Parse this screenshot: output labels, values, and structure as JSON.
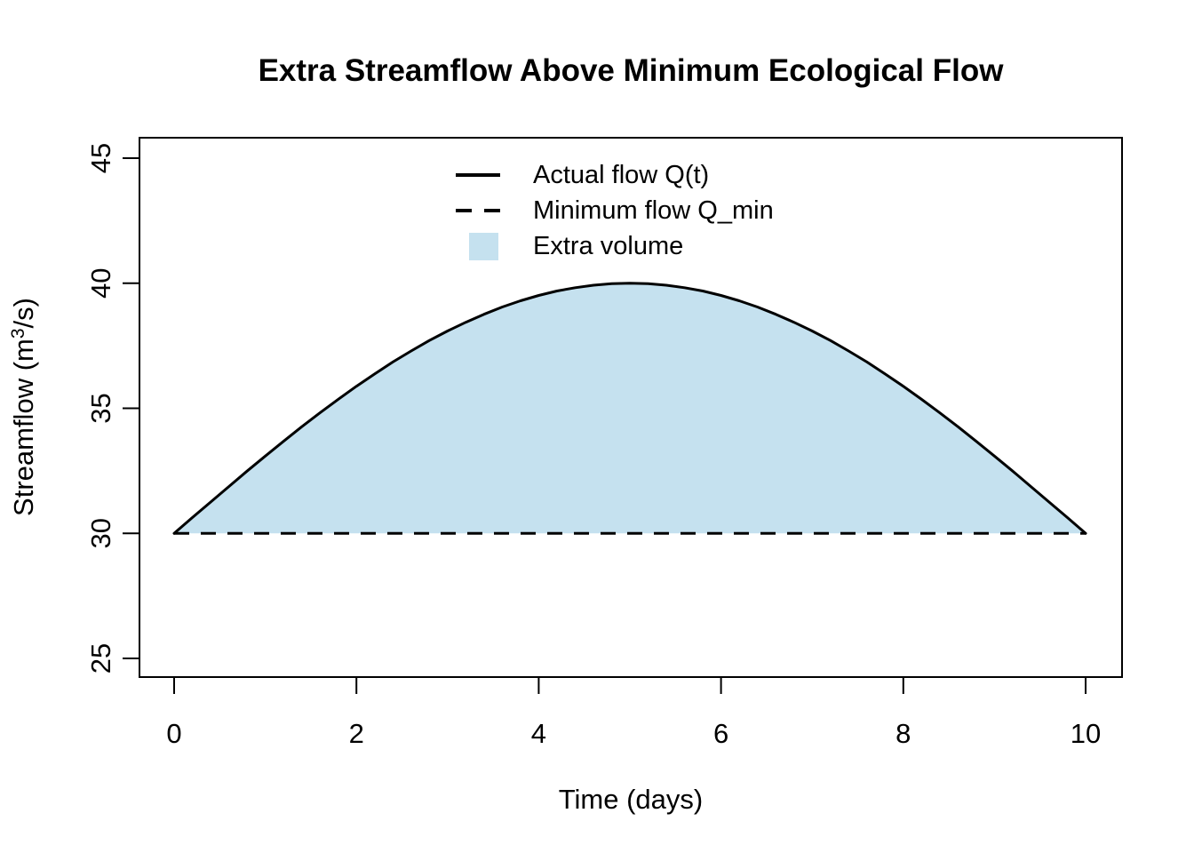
{
  "chart": {
    "title": "Extra Streamflow Above Minimum Ecological Flow",
    "x_axis": {
      "label": "Time (days)",
      "ticks": [
        0,
        2,
        4,
        6,
        8,
        10
      ]
    },
    "y_axis": {
      "label_prefix": "Streamflow (m",
      "label_sup": "3",
      "label_suffix": "/s)",
      "ticks": [
        25,
        30,
        35,
        40,
        45
      ]
    },
    "legend": [
      {
        "label": "Actual flow Q(t)",
        "swatch": "solid-line",
        "color": "#000000"
      },
      {
        "label": "Minimum flow Q_min",
        "swatch": "dashed-line",
        "color": "#000000"
      },
      {
        "label": "Extra volume",
        "swatch": "box",
        "color": "#C5E1EF"
      }
    ]
  },
  "chart_data": {
    "type": "area",
    "title": "Extra Streamflow Above Minimum Ecological Flow",
    "xlabel": "Time (days)",
    "ylabel": "Streamflow (m^3/s)",
    "xlim": [
      0,
      10
    ],
    "ylim": [
      25,
      45
    ],
    "x_ticks": [
      0,
      2,
      4,
      6,
      8,
      10
    ],
    "y_ticks": [
      25,
      30,
      35,
      40,
      45
    ],
    "grid": false,
    "legend_position": "top-center",
    "frame_color": "#000000",
    "series": [
      {
        "name": "Actual flow Q(t)",
        "kind": "line",
        "style": "solid",
        "color": "#000000",
        "x": [
          0,
          0.2,
          0.4,
          0.6,
          0.8,
          1,
          1.2,
          1.4,
          1.6,
          1.8,
          2,
          2.2,
          2.4,
          2.6,
          2.8,
          3,
          3.2,
          3.4,
          3.6,
          3.8,
          4,
          4.2,
          4.4,
          4.6,
          4.8,
          5,
          5.2,
          5.4,
          5.6,
          5.8,
          6,
          6.2,
          6.4,
          6.6,
          6.8,
          7,
          7.2,
          7.4,
          7.6,
          7.8,
          8,
          8.2,
          8.4,
          8.6,
          8.8,
          9,
          9.2,
          9.4,
          9.6,
          9.8,
          10
        ],
        "y": [
          30,
          30.63,
          31.25,
          31.87,
          32.49,
          33.09,
          33.68,
          34.26,
          34.82,
          35.36,
          35.88,
          36.37,
          36.85,
          37.29,
          37.71,
          38.09,
          38.44,
          38.76,
          39.05,
          39.3,
          39.51,
          39.69,
          39.82,
          39.92,
          39.98,
          40,
          39.98,
          39.92,
          39.82,
          39.69,
          39.51,
          39.3,
          39.05,
          38.76,
          38.44,
          38.09,
          37.71,
          37.29,
          36.85,
          36.37,
          35.88,
          35.36,
          34.82,
          34.26,
          33.68,
          33.09,
          32.49,
          31.87,
          31.25,
          30.63,
          30
        ]
      },
      {
        "name": "Minimum flow Q_min",
        "kind": "line",
        "style": "dashed",
        "color": "#000000",
        "x": [
          0,
          10
        ],
        "y": [
          30,
          30
        ]
      },
      {
        "name": "Extra volume",
        "kind": "area-fill",
        "fill": "#C5E1EF",
        "between": "Actual flow Q(t) and baseline",
        "baseline": 30
      }
    ]
  }
}
